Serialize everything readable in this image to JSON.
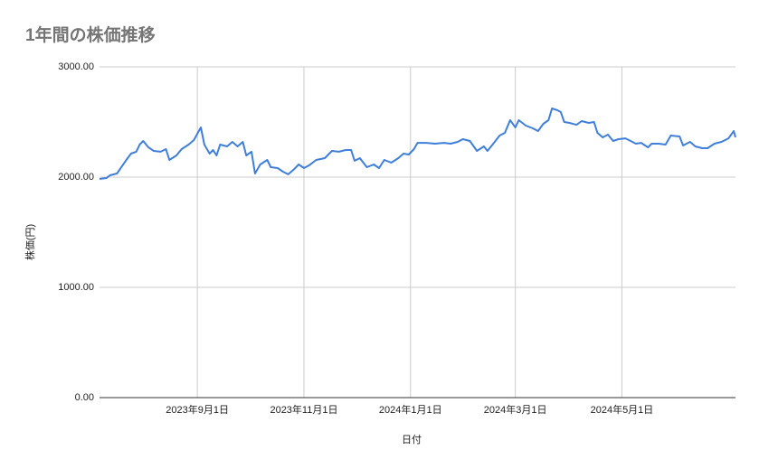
{
  "chart_data": {
    "type": "line",
    "title": "1年間の株価推移",
    "x_label": "日付",
    "y_label": "株価(円)",
    "x": [
      "2023-07-07",
      "2023-07-11",
      "2023-07-13",
      "2023-07-17",
      "2023-07-22",
      "2023-07-25",
      "2023-07-28",
      "2023-07-30",
      "2023-08-01",
      "2023-08-04",
      "2023-08-07",
      "2023-08-11",
      "2023-08-14",
      "2023-08-16",
      "2023-08-20",
      "2023-08-23",
      "2023-08-27",
      "2023-08-30",
      "2023-09-03",
      "2023-09-05",
      "2023-09-08",
      "2023-09-10",
      "2023-09-12",
      "2023-09-14",
      "2023-09-18",
      "2023-09-21",
      "2023-09-24",
      "2023-09-27",
      "2023-09-29",
      "2023-10-02",
      "2023-10-04",
      "2023-10-07",
      "2023-10-11",
      "2023-10-13",
      "2023-10-17",
      "2023-10-20",
      "2023-10-23",
      "2023-10-26",
      "2023-10-29",
      "2023-11-01",
      "2023-11-04",
      "2023-11-08",
      "2023-11-13",
      "2023-11-17",
      "2023-11-21",
      "2023-11-25",
      "2023-11-28",
      "2023-11-30",
      "2023-12-03",
      "2023-12-07",
      "2023-12-11",
      "2023-12-14",
      "2023-12-17",
      "2023-12-21",
      "2023-12-25",
      "2023-12-28",
      "2023-12-31",
      "2024-01-03",
      "2024-01-05",
      "2024-01-10",
      "2024-01-15",
      "2024-01-20",
      "2024-01-24",
      "2024-01-28",
      "2024-01-31",
      "2024-02-04",
      "2024-02-08",
      "2024-02-12",
      "2024-02-14",
      "2024-02-17",
      "2024-02-21",
      "2024-02-24",
      "2024-02-27",
      "2024-03-01",
      "2024-03-03",
      "2024-03-07",
      "2024-03-11",
      "2024-03-14",
      "2024-03-17",
      "2024-03-20",
      "2024-03-22",
      "2024-03-25",
      "2024-03-27",
      "2024-03-29",
      "2024-04-01",
      "2024-04-05",
      "2024-04-08",
      "2024-04-12",
      "2024-04-15",
      "2024-04-17",
      "2024-04-20",
      "2024-04-23",
      "2024-04-26",
      "2024-04-29",
      "2024-05-03",
      "2024-05-06",
      "2024-05-09",
      "2024-05-12",
      "2024-05-16",
      "2024-05-18",
      "2024-05-22",
      "2024-05-26",
      "2024-05-29",
      "2024-06-03",
      "2024-06-05",
      "2024-06-09",
      "2024-06-12",
      "2024-06-16",
      "2024-06-19",
      "2024-06-23",
      "2024-06-27",
      "2024-07-01",
      "2024-07-04",
      "2024-07-05"
    ],
    "series": [
      {
        "color": "#3f7fd9",
        "values": [
          1984,
          1992,
          2016,
          2033,
          2148,
          2213,
          2230,
          2295,
          2328,
          2270,
          2238,
          2230,
          2254,
          2156,
          2197,
          2254,
          2295,
          2336,
          2451,
          2295,
          2213,
          2246,
          2197,
          2295,
          2279,
          2320,
          2279,
          2320,
          2197,
          2230,
          2033,
          2115,
          2156,
          2090,
          2082,
          2049,
          2025,
          2066,
          2115,
          2082,
          2107,
          2156,
          2172,
          2238,
          2230,
          2246,
          2246,
          2148,
          2172,
          2090,
          2115,
          2082,
          2156,
          2131,
          2172,
          2213,
          2205,
          2254,
          2311,
          2311,
          2303,
          2311,
          2303,
          2320,
          2344,
          2328,
          2238,
          2279,
          2238,
          2295,
          2377,
          2402,
          2516,
          2451,
          2516,
          2467,
          2443,
          2418,
          2484,
          2516,
          2623,
          2607,
          2590,
          2500,
          2492,
          2475,
          2508,
          2492,
          2500,
          2402,
          2361,
          2385,
          2328,
          2344,
          2352,
          2328,
          2303,
          2311,
          2270,
          2303,
          2303,
          2295,
          2377,
          2369,
          2287,
          2320,
          2279,
          2262,
          2262,
          2303,
          2320,
          2352,
          2418,
          2361
        ]
      }
    ],
    "xlim": [
      "2023-07-07",
      "2024-07-05"
    ],
    "xticks": [
      {
        "value": "2023-09-01",
        "label": "2023年9月1日"
      },
      {
        "value": "2023-11-01",
        "label": "2023年11月1日"
      },
      {
        "value": "2024-01-01",
        "label": "2024年1月1日"
      },
      {
        "value": "2024-03-01",
        "label": "2024年3月1日"
      },
      {
        "value": "2024-05-01",
        "label": "2024年5月1日"
      }
    ],
    "ylim": [
      0,
      3000
    ],
    "yticks": [
      {
        "value": 0,
        "label": "0.00"
      },
      {
        "value": 1000,
        "label": "1000.00"
      },
      {
        "value": 2000,
        "label": "2000.00"
      },
      {
        "value": 3000,
        "label": "3000.00"
      }
    ],
    "grid": true
  }
}
